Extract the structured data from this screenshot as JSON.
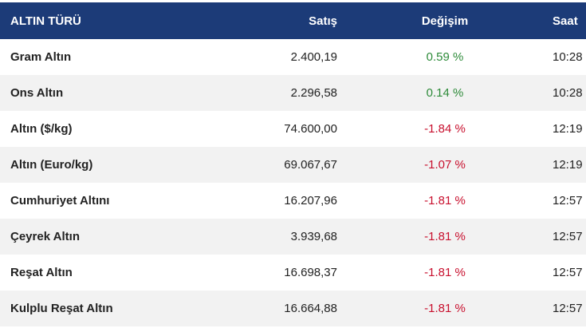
{
  "table": {
    "header": [
      "ALTIN TÜRÜ",
      "Satış",
      "Değişim",
      "Saat"
    ],
    "rows": [
      [
        "Gram Altın",
        "2.400,19",
        "0.59 %",
        "10:28"
      ],
      [
        "Ons Altın",
        "2.296,58",
        "0.14 %",
        "10:28"
      ],
      [
        "Altın ($/kg)",
        "74.600,00",
        "-1.84 %",
        "12:19"
      ],
      [
        "Altın (Euro/kg)",
        "69.067,67",
        "-1.07 %",
        "12:19"
      ],
      [
        "Cumhuriyet Altını",
        "16.207,96",
        "-1.81 %",
        "12:57"
      ],
      [
        "Çeyrek Altın",
        "3.939,68",
        "-1.81 %",
        "12:57"
      ],
      [
        "Reşat Altın",
        "16.698,37",
        "-1.81 %",
        "12:57"
      ],
      [
        "Kulplu Reşat Altın",
        "16.664,88",
        "-1.81 %",
        "12:57"
      ]
    ]
  }
}
